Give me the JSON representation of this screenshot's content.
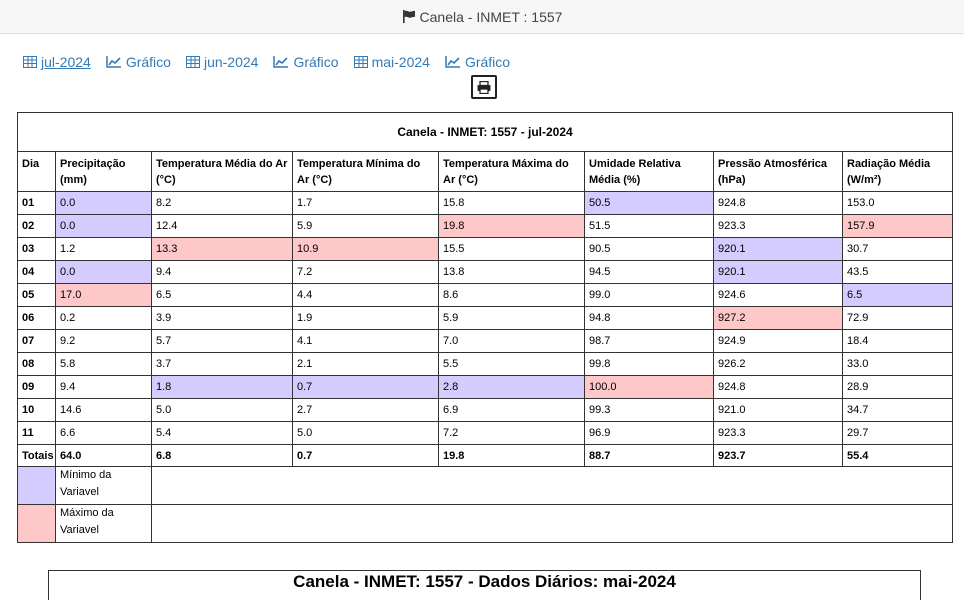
{
  "header": {
    "title": "Canela - INMET : 1557",
    "icon": "flag-icon"
  },
  "nav": [
    {
      "icon": "table-icon",
      "label": "jul-2024",
      "active": true
    },
    {
      "icon": "line-chart-icon",
      "label": "Gráfico"
    },
    {
      "icon": "table-icon",
      "label": "jun-2024"
    },
    {
      "icon": "line-chart-icon",
      "label": "Gráfico"
    },
    {
      "icon": "table-icon",
      "label": "mai-2024"
    },
    {
      "icon": "line-chart-icon",
      "label": "Gráfico"
    }
  ],
  "print_icon": "print-icon",
  "table": {
    "title": "Canela - INMET: 1557 - jul-2024",
    "headers": [
      "Dia",
      "Precipitação (mm)",
      "Temperatura Média do Ar (°C)",
      "Temperatura Mínima do Ar (°C)",
      "Temperatura Máxima do Ar (°C)",
      "Umidade Relativa Média (%)",
      "Pressão Atmosférica (hPa)",
      "Radiação Média (W/m²)"
    ],
    "rows": [
      {
        "cells": [
          "01",
          "0.0",
          "8.2",
          "1.7",
          "15.8",
          "50.5",
          "924.8",
          "153.0"
        ],
        "marks": [
          "",
          "min",
          "",
          "",
          "",
          "min",
          "",
          ""
        ]
      },
      {
        "cells": [
          "02",
          "0.0",
          "12.4",
          "5.9",
          "19.8",
          "51.5",
          "923.3",
          "157.9"
        ],
        "marks": [
          "",
          "min",
          "",
          "",
          "max",
          "",
          "",
          "max"
        ]
      },
      {
        "cells": [
          "03",
          "1.2",
          "13.3",
          "10.9",
          "15.5",
          "90.5",
          "920.1",
          "30.7"
        ],
        "marks": [
          "",
          "",
          "max",
          "max",
          "",
          "",
          "min",
          ""
        ]
      },
      {
        "cells": [
          "04",
          "0.0",
          "9.4",
          "7.2",
          "13.8",
          "94.5",
          "920.1",
          "43.5"
        ],
        "marks": [
          "",
          "min",
          "",
          "",
          "",
          "",
          "min",
          ""
        ]
      },
      {
        "cells": [
          "05",
          "17.0",
          "6.5",
          "4.4",
          "8.6",
          "99.0",
          "924.6",
          "6.5"
        ],
        "marks": [
          "",
          "max",
          "",
          "",
          "",
          "",
          "",
          "min"
        ]
      },
      {
        "cells": [
          "06",
          "0.2",
          "3.9",
          "1.9",
          "5.9",
          "94.8",
          "927.2",
          "72.9"
        ],
        "marks": [
          "",
          "",
          "",
          "",
          "",
          "",
          "max",
          ""
        ]
      },
      {
        "cells": [
          "07",
          "9.2",
          "5.7",
          "4.1",
          "7.0",
          "98.7",
          "924.9",
          "18.4"
        ],
        "marks": [
          "",
          "",
          "",
          "",
          "",
          "",
          "",
          ""
        ]
      },
      {
        "cells": [
          "08",
          "5.8",
          "3.7",
          "2.1",
          "5.5",
          "99.8",
          "926.2",
          "33.0"
        ],
        "marks": [
          "",
          "",
          "",
          "",
          "",
          "",
          "",
          ""
        ]
      },
      {
        "cells": [
          "09",
          "9.4",
          "1.8",
          "0.7",
          "2.8",
          "100.0",
          "924.8",
          "28.9"
        ],
        "marks": [
          "",
          "",
          "min",
          "min",
          "min",
          "max",
          "",
          ""
        ]
      },
      {
        "cells": [
          "10",
          "14.6",
          "5.0",
          "2.7",
          "6.9",
          "99.3",
          "921.0",
          "34.7"
        ],
        "marks": [
          "",
          "",
          "",
          "",
          "",
          "",
          "",
          ""
        ]
      },
      {
        "cells": [
          "11",
          "6.6",
          "5.4",
          "5.0",
          "7.2",
          "96.9",
          "923.3",
          "29.7"
        ],
        "marks": [
          "",
          "",
          "",
          "",
          "",
          "",
          "",
          ""
        ]
      }
    ],
    "totals": [
      "Totais",
      "64.0",
      "6.8",
      "0.7",
      "19.8",
      "88.7",
      "923.7",
      "55.4"
    ],
    "legend": [
      {
        "label": "Mínimo da Variavel",
        "color": "#d4ccff"
      },
      {
        "label": "Máximo da Variavel",
        "color": "#ffc8c8"
      }
    ]
  },
  "colors": {
    "min": "#d4ccff",
    "max": "#ffc8c8",
    "link": "#337ab7"
  },
  "next_section_title": "Canela - INMET: 1557 - Dados Diários: mai-2024"
}
